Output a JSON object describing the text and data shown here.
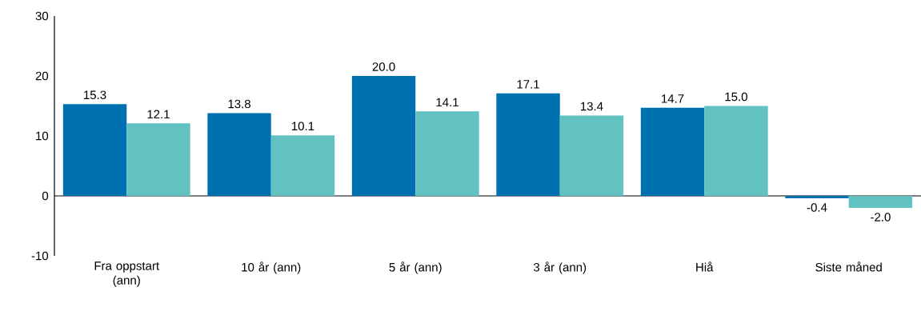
{
  "chart_data": {
    "type": "bar",
    "categories": [
      "Fra oppstart (ann)",
      "10 år (ann)",
      "5 år (ann)",
      "3 år (ann)",
      "Hiå",
      "Siste måned"
    ],
    "series": [
      {
        "color": "#0071b0",
        "values": [
          15.3,
          13.8,
          20.0,
          17.1,
          14.7,
          -0.4
        ],
        "value_labels": [
          "15.3",
          "13.8",
          "20.0",
          "17.1",
          "14.7",
          "-0.4"
        ]
      },
      {
        "color": "#62c2c1",
        "values": [
          12.1,
          10.1,
          14.1,
          13.4,
          15.0,
          -2.0
        ],
        "value_labels": [
          "12.1",
          "10.1",
          "14.1",
          "13.4",
          "15.0",
          "-2.0"
        ]
      }
    ],
    "ylim": [
      -10,
      30
    ],
    "yticks": [
      -10,
      0,
      10,
      20,
      30
    ]
  }
}
